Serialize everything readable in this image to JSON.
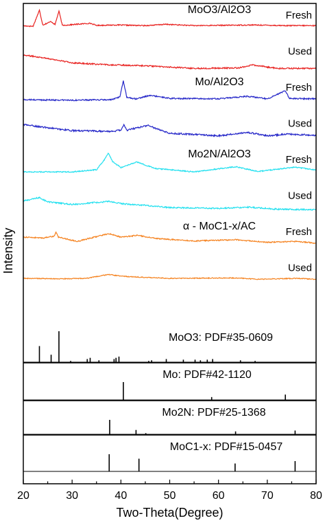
{
  "chart_data": {
    "type": "line",
    "xlabel": "Two-Theta(Degree)",
    "ylabel": "Intensity",
    "xlim": [
      20,
      80
    ],
    "x_ticks": [
      20,
      30,
      40,
      50,
      60,
      70,
      80
    ],
    "grid": false,
    "series": [
      {
        "name": "MoO3/Al2O3 Fresh",
        "sample_label": "MoO3/Al2O3",
        "state_label": "Fresh",
        "color": "#e8201e",
        "noise": 0.12,
        "points": [
          [
            20,
            3.0
          ],
          [
            22,
            2.9
          ],
          [
            23.3,
            6.6
          ],
          [
            24,
            3.2
          ],
          [
            25.7,
            4.0
          ],
          [
            26.5,
            3.3
          ],
          [
            27.3,
            6.4
          ],
          [
            28,
            3.1
          ],
          [
            33.7,
            3.6
          ],
          [
            35,
            3.1
          ],
          [
            39,
            3.2
          ],
          [
            45,
            3.05
          ],
          [
            49.2,
            3.35
          ],
          [
            55,
            3.05
          ],
          [
            67,
            3.2
          ],
          [
            74,
            3.05
          ],
          [
            80,
            3.05
          ]
        ]
      },
      {
        "name": "MoO3/Al2O3 Used",
        "state_label": "Used",
        "color": "#e8201e",
        "noise": 0.15,
        "points": [
          [
            20,
            4.6
          ],
          [
            24,
            4.0
          ],
          [
            30,
            2.8
          ],
          [
            36,
            2.4
          ],
          [
            45,
            2.1
          ],
          [
            55,
            1.5
          ],
          [
            64,
            1.6
          ],
          [
            67,
            2.3
          ],
          [
            72,
            1.5
          ],
          [
            80,
            1.5
          ]
        ]
      },
      {
        "name": "Mo/Al2O3 Fresh",
        "sample_label": "Mo/Al2O3",
        "state_label": "Fresh",
        "color": "#2426c8",
        "noise": 0.15,
        "points": [
          [
            20,
            2.6
          ],
          [
            30,
            2.5
          ],
          [
            38,
            2.6
          ],
          [
            39.8,
            3.2
          ],
          [
            40.5,
            7.0
          ],
          [
            41.2,
            3.2
          ],
          [
            43,
            2.8
          ],
          [
            46,
            3.6
          ],
          [
            50,
            2.9
          ],
          [
            60,
            2.8
          ],
          [
            66,
            3.4
          ],
          [
            70,
            2.8
          ],
          [
            73.7,
            4.7
          ],
          [
            74.5,
            2.9
          ],
          [
            80,
            2.8
          ]
        ]
      },
      {
        "name": "Mo/Al2O3 Used",
        "state_label": "Used",
        "color": "#2426c8",
        "noise": 0.18,
        "points": [
          [
            20,
            5.2
          ],
          [
            24,
            4.6
          ],
          [
            30,
            3.8
          ],
          [
            38,
            3.6
          ],
          [
            40.1,
            3.9
          ],
          [
            40.6,
            5.3
          ],
          [
            41.2,
            3.9
          ],
          [
            45.5,
            5.0
          ],
          [
            50,
            3.2
          ],
          [
            60,
            2.6
          ],
          [
            66,
            3.4
          ],
          [
            70,
            2.6
          ],
          [
            74,
            3.0
          ],
          [
            80,
            2.7
          ]
        ]
      },
      {
        "name": "Mo2N/Al2O3 Fresh",
        "sample_label": "Mo2N/Al2O3",
        "state_label": "Fresh",
        "color": "#22e0ef",
        "noise": 0.12,
        "points": [
          [
            20,
            2.6
          ],
          [
            30,
            2.6
          ],
          [
            35,
            3.1
          ],
          [
            36.6,
            5.4
          ],
          [
            37.4,
            7.0
          ],
          [
            38.3,
            5.0
          ],
          [
            40,
            3.6
          ],
          [
            43.2,
            4.9
          ],
          [
            47,
            3.4
          ],
          [
            55,
            2.6
          ],
          [
            63.5,
            3.8
          ],
          [
            68,
            2.7
          ],
          [
            75.7,
            3.7
          ],
          [
            80,
            3.0
          ]
        ]
      },
      {
        "name": "Mo2N/Al2O3 Used",
        "state_label": "Used",
        "color": "#22e0ef",
        "noise": 0.16,
        "points": [
          [
            20,
            4.2
          ],
          [
            23.3,
            5.0
          ],
          [
            25,
            4.0
          ],
          [
            30,
            3.4
          ],
          [
            37.5,
            4.1
          ],
          [
            40,
            3.6
          ],
          [
            45,
            3.2
          ],
          [
            50,
            2.7
          ],
          [
            60,
            2.5
          ],
          [
            66,
            2.8
          ],
          [
            72,
            2.3
          ],
          [
            80,
            2.2
          ]
        ]
      },
      {
        "name": "MoC1-x/AC Fresh",
        "sample_label": "α - MoC1-x/AC",
        "state_label": "Fresh",
        "color": "#f5821f",
        "noise": 0.13,
        "points": [
          [
            20,
            4.2
          ],
          [
            24,
            4.0
          ],
          [
            26.3,
            4.4
          ],
          [
            26.7,
            5.3
          ],
          [
            27.2,
            4.2
          ],
          [
            31,
            3.2
          ],
          [
            37.5,
            5.0
          ],
          [
            40,
            4.2
          ],
          [
            43.5,
            4.6
          ],
          [
            47,
            3.9
          ],
          [
            55,
            3.3
          ],
          [
            63.5,
            3.6
          ],
          [
            70,
            3.0
          ],
          [
            76,
            3.2
          ],
          [
            80,
            2.8
          ]
        ]
      },
      {
        "name": "MoC1-x/AC Used",
        "state_label": "Used",
        "color": "#f5821f",
        "noise": 0.1,
        "points": [
          [
            20,
            3.0
          ],
          [
            28,
            2.9
          ],
          [
            33,
            3.0
          ],
          [
            37.5,
            3.9
          ],
          [
            40,
            3.5
          ],
          [
            43.7,
            3.3
          ],
          [
            50,
            3.0
          ],
          [
            63.5,
            3.1
          ],
          [
            68,
            2.8
          ],
          [
            76,
            3.0
          ],
          [
            80,
            2.8
          ]
        ]
      }
    ],
    "references": [
      {
        "label": "MoO3: PDF#35-0609",
        "sticks": [
          [
            23.3,
            52
          ],
          [
            25.7,
            24
          ],
          [
            27.3,
            100
          ],
          [
            29.7,
            4
          ],
          [
            33.1,
            10
          ],
          [
            33.7,
            14
          ],
          [
            35.5,
            6
          ],
          [
            38.6,
            10
          ],
          [
            39.0,
            14
          ],
          [
            39.6,
            18
          ],
          [
            45.7,
            4
          ],
          [
            46.3,
            6
          ],
          [
            49.3,
            10
          ],
          [
            52.8,
            8
          ],
          [
            55.2,
            8
          ],
          [
            56.3,
            6
          ],
          [
            57.7,
            8
          ],
          [
            58.8,
            10
          ],
          [
            64.5,
            6
          ],
          [
            67.5,
            4
          ]
        ]
      },
      {
        "label": "Mo: PDF#42-1120",
        "sticks": [
          [
            40.5,
            100
          ],
          [
            58.6,
            16
          ],
          [
            73.7,
            30
          ]
        ]
      },
      {
        "label": "Mo2N: PDF#25-1368",
        "sticks": [
          [
            37.7,
            100
          ],
          [
            43.1,
            30
          ],
          [
            45.1,
            8
          ],
          [
            63.5,
            20
          ],
          [
            75.7,
            26
          ]
        ]
      },
      {
        "label": "MoC1-x: PDF#15-0457",
        "sticks": [
          [
            37.6,
            100
          ],
          [
            43.7,
            74
          ],
          [
            63.4,
            46
          ],
          [
            75.7,
            60
          ]
        ]
      }
    ]
  }
}
